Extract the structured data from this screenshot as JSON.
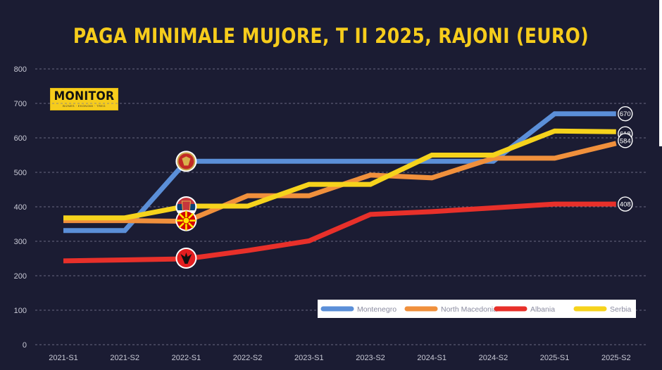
{
  "title": "PAGA MINIMALE MUJORE, T II 2025, RAJONI (EURO)",
  "logo": {
    "name": "MONITOR",
    "tagline": "BIZNES · EKONOMI · TREG"
  },
  "chart_data": {
    "type": "line",
    "title": "PAGA MINIMALE MUJORE, T II 2025, RAJONI (EURO)",
    "xlabel": "",
    "ylabel": "",
    "ylim": [
      0,
      800
    ],
    "yticks": [
      0,
      100,
      200,
      300,
      400,
      500,
      600,
      700,
      800
    ],
    "grid": true,
    "legend_position": "bottom-right",
    "categories": [
      "2021-S1",
      "2021-S2",
      "2022-S1",
      "2022-S2",
      "2023-S1",
      "2023-S2",
      "2024-S1",
      "2024-S2",
      "2025-S1",
      "2025-S2"
    ],
    "series": [
      {
        "name": "Montenegro",
        "color": "#5b8fd8",
        "values": [
          331,
          331,
          532,
          532,
          532,
          532,
          532,
          532,
          670,
          670
        ],
        "icon": "montenegro-flag-icon"
      },
      {
        "name": "North Macedonia",
        "color": "#f0903c",
        "values": [
          360,
          360,
          358,
          432,
          432,
          492,
          484,
          541,
          541,
          584
        ],
        "icon": "north-macedonia-flag-icon"
      },
      {
        "name": "Albania",
        "color": "#e8302a",
        "values": [
          243,
          246,
          249,
          273,
          301,
          378,
          386,
          397,
          408,
          408
        ],
        "icon": "albania-flag-icon"
      },
      {
        "name": "Serbia",
        "color": "#f6d31c",
        "values": [
          368,
          368,
          402,
          402,
          465,
          465,
          550,
          550,
          620,
          618
        ],
        "icon": "serbia-flag-icon"
      }
    ],
    "end_labels": [
      "670",
      "618",
      "584",
      "408"
    ]
  }
}
